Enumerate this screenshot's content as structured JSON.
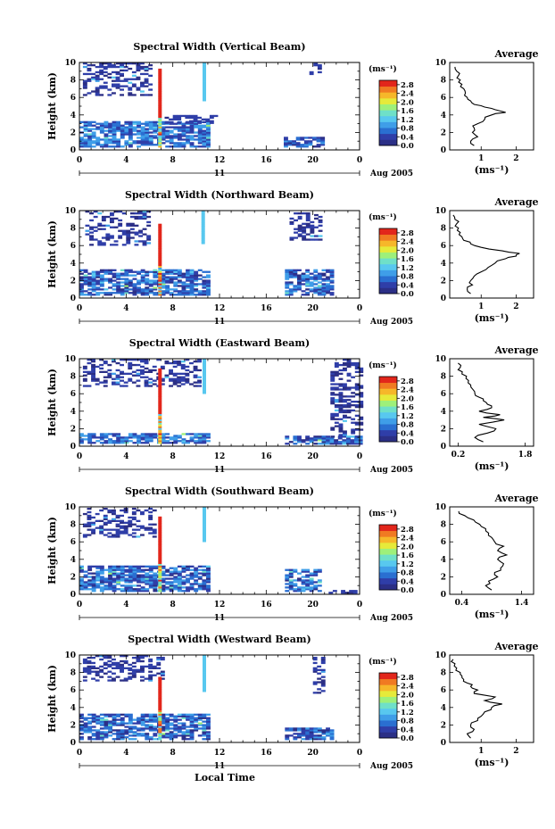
{
  "figure": {
    "x_axis_title": "Local Time",
    "date_label": "Aug 2005",
    "day_label": "11",
    "panel_y_label": "Height (km)",
    "colorbar_unit": "(ms⁻¹)",
    "profile_title": "Average",
    "profile_xlabel": "(ms⁻¹)"
  },
  "colors": {
    "colormap": [
      "#2b2f86",
      "#2f3ea8",
      "#2a6fd1",
      "#3f9ee8",
      "#58c8ef",
      "#6fe0c8",
      "#9ef07a",
      "#e6ea3a",
      "#f6b72a",
      "#f07a22",
      "#e2261b"
    ]
  },
  "chart_data": [
    {
      "type": "heatmap",
      "title": "Spectral Width (Vertical Beam)",
      "xlabel": "",
      "ylabel": "Height (km)",
      "xlim": [
        0,
        24
      ],
      "ylim": [
        0,
        10
      ],
      "xticks": [
        "0",
        "4",
        "8",
        "12",
        "16",
        "20",
        "0"
      ],
      "yticks": [
        "0",
        "2",
        "4",
        "6",
        "8",
        "10"
      ],
      "colorbar": {
        "label": "(ms⁻¹)",
        "ticks": [
          "0.0",
          "0.4",
          "0.8",
          "1.2",
          "1.6",
          "2.0",
          "2.4",
          "2.8"
        ],
        "range": [
          0,
          3.0
        ]
      },
      "regions": [
        {
          "t0": 0.0,
          "t1": 11.1,
          "h0": 0.3,
          "h1": 3.2,
          "v": 0.6
        },
        {
          "t0": 0.3,
          "t1": 6.0,
          "h0": 6.2,
          "h1": 9.8,
          "v": 0.2
        },
        {
          "t0": 7.3,
          "t1": 11.6,
          "h0": 3.0,
          "h1": 4.0,
          "v": 0.3
        },
        {
          "t0": 17.5,
          "t1": 21.0,
          "h0": 0.3,
          "h1": 1.3,
          "v": 0.5
        },
        {
          "t0": 19.7,
          "t1": 20.6,
          "h0": 8.6,
          "h1": 9.9,
          "v": 0.2
        }
      ],
      "streaks": [
        {
          "t": 6.9,
          "h0": 0.3,
          "h1": 9.3,
          "v": 3.0
        },
        {
          "t": 10.7,
          "h0": 5.6,
          "h1": 9.9,
          "v": 1.2
        }
      ],
      "profile": {
        "title": "Average",
        "xlabel": "(ms⁻¹)",
        "xticks": [
          "1",
          "2"
        ],
        "xlim": [
          0.1,
          2.5
        ],
        "ylim": [
          0,
          10
        ],
        "yticks": [
          "0",
          "2",
          "4",
          "6",
          "8",
          "10"
        ],
        "heights": [
          0.5,
          1.0,
          1.5,
          2.0,
          2.5,
          3.0,
          3.5,
          4.0,
          4.3,
          4.6,
          4.9,
          5.2,
          5.6,
          6.0,
          6.5,
          7.0,
          7.5,
          8.0,
          8.5,
          9.0,
          9.5
        ],
        "values": [
          0.8,
          0.7,
          0.9,
          0.75,
          0.8,
          0.9,
          1.1,
          1.3,
          1.7,
          1.4,
          1.1,
          0.8,
          0.7,
          0.6,
          0.55,
          0.5,
          0.45,
          0.4,
          0.35,
          0.3,
          0.25
        ]
      }
    },
    {
      "type": "heatmap",
      "title": "Spectral Width (Northward Beam)",
      "xlabel": "",
      "ylabel": "Height (km)",
      "xlim": [
        0,
        24
      ],
      "ylim": [
        0,
        10
      ],
      "xticks": [
        "0",
        "4",
        "8",
        "12",
        "16",
        "20",
        "0"
      ],
      "yticks": [
        "0",
        "2",
        "4",
        "6",
        "8",
        "10"
      ],
      "colorbar": {
        "label": "(ms⁻¹)",
        "ticks": [
          "0.0",
          "0.4",
          "0.8",
          "1.2",
          "1.6",
          "2.0",
          "2.4",
          "2.8"
        ],
        "range": [
          0,
          3.0
        ]
      },
      "regions": [
        {
          "t0": 0.0,
          "t1": 11.0,
          "h0": 0.3,
          "h1": 3.2,
          "v": 0.5
        },
        {
          "t0": 0.5,
          "t1": 6.0,
          "h0": 6.0,
          "h1": 9.8,
          "v": 0.2
        },
        {
          "t0": 17.6,
          "t1": 21.5,
          "h0": 0.3,
          "h1": 3.2,
          "v": 0.5
        },
        {
          "t0": 18.0,
          "t1": 20.6,
          "h0": 6.6,
          "h1": 9.6,
          "v": 0.2
        }
      ],
      "streaks": [
        {
          "t": 6.9,
          "h0": 0.3,
          "h1": 8.4,
          "v": 3.0
        },
        {
          "t": 10.6,
          "h0": 6.2,
          "h1": 9.8,
          "v": 1.2
        }
      ],
      "profile": {
        "title": "Average",
        "xlabel": "(ms⁻¹)",
        "xticks": [
          "1",
          "2"
        ],
        "xlim": [
          0.1,
          2.5
        ],
        "ylim": [
          0,
          10
        ],
        "yticks": [
          "0",
          "2",
          "4",
          "6",
          "8",
          "10"
        ],
        "heights": [
          0.5,
          1.0,
          1.5,
          2.0,
          2.5,
          3.0,
          3.5,
          4.0,
          4.5,
          4.8,
          5.1,
          5.4,
          5.8,
          6.2,
          6.6,
          7.0,
          7.5,
          8.0,
          8.5,
          9.0,
          9.5
        ],
        "values": [
          0.7,
          0.6,
          0.75,
          0.7,
          0.8,
          1.0,
          1.2,
          1.4,
          1.7,
          2.0,
          2.1,
          1.6,
          1.0,
          0.7,
          0.5,
          0.45,
          0.4,
          0.35,
          0.3,
          0.25,
          0.2
        ]
      }
    },
    {
      "type": "heatmap",
      "title": "Spectral Width (Eastward Beam)",
      "xlabel": "",
      "ylabel": "Height (km)",
      "xlim": [
        0,
        24
      ],
      "ylim": [
        0,
        10
      ],
      "xticks": [
        "0",
        "4",
        "8",
        "12",
        "16",
        "20",
        "0"
      ],
      "yticks": [
        "0",
        "2",
        "4",
        "6",
        "8",
        "10"
      ],
      "colorbar": {
        "label": "(ms⁻¹)",
        "ticks": [
          "0.0",
          "0.4",
          "0.8",
          "1.2",
          "1.6",
          "2.0",
          "2.4",
          "2.8"
        ],
        "range": [
          0,
          3.0
        ]
      },
      "regions": [
        {
          "t0": 0.0,
          "t1": 11.1,
          "h0": 0.3,
          "h1": 1.3,
          "v": 0.6
        },
        {
          "t0": 0.3,
          "t1": 10.3,
          "h0": 6.8,
          "h1": 9.8,
          "v": 0.2
        },
        {
          "t0": 17.6,
          "t1": 24.0,
          "h0": 0.2,
          "h1": 1.2,
          "v": 0.5
        },
        {
          "t0": 21.5,
          "t1": 24.0,
          "h0": 1.0,
          "h1": 9.8,
          "v": 0.15
        }
      ],
      "streaks": [
        {
          "t": 6.9,
          "h0": 0.3,
          "h1": 8.8,
          "v": 3.0
        },
        {
          "t": 10.7,
          "h0": 6.0,
          "h1": 9.8,
          "v": 1.2
        }
      ],
      "profile": {
        "title": "Average",
        "xlabel": "(ms⁻¹)",
        "xticks": [
          "0.2",
          "1.8"
        ],
        "xlim": [
          0.0,
          2.0
        ],
        "ylim": [
          0,
          10
        ],
        "yticks": [
          "0",
          "2",
          "4",
          "6",
          "8",
          "10"
        ],
        "heights": [
          0.5,
          1.0,
          1.5,
          2.0,
          2.5,
          3.0,
          3.3,
          3.6,
          4.0,
          4.4,
          4.8,
          5.2,
          5.6,
          6.0,
          6.5,
          7.0,
          7.5,
          8.0,
          8.5,
          9.0,
          9.5
        ],
        "values": [
          0.8,
          0.6,
          0.9,
          1.1,
          0.7,
          1.3,
          0.8,
          1.2,
          0.7,
          1.0,
          0.9,
          0.8,
          0.7,
          0.6,
          0.55,
          0.5,
          0.45,
          0.4,
          0.3,
          0.25,
          0.2
        ]
      }
    },
    {
      "type": "heatmap",
      "title": "Spectral Width (Southward Beam)",
      "xlabel": "",
      "ylabel": "Height (km)",
      "xlim": [
        0,
        24
      ],
      "ylim": [
        0,
        10
      ],
      "xticks": [
        "0",
        "4",
        "8",
        "12",
        "16",
        "20",
        "0"
      ],
      "yticks": [
        "0",
        "2",
        "4",
        "6",
        "8",
        "10"
      ],
      "colorbar": {
        "label": "(ms⁻¹)",
        "ticks": [
          "0.0",
          "0.4",
          "0.8",
          "1.2",
          "1.6",
          "2.0",
          "2.4",
          "2.8"
        ],
        "range": [
          0,
          3.0
        ]
      },
      "regions": [
        {
          "t0": 0.0,
          "t1": 11.0,
          "h0": 0.3,
          "h1": 3.2,
          "v": 0.5
        },
        {
          "t0": 0.3,
          "t1": 6.5,
          "h0": 6.5,
          "h1": 9.8,
          "v": 0.2
        },
        {
          "t0": 17.6,
          "t1": 20.6,
          "h0": 0.3,
          "h1": 2.8,
          "v": 0.5
        },
        {
          "t0": 21.0,
          "t1": 24.0,
          "h0": 0.1,
          "h1": 0.5,
          "v": 0.2
        }
      ],
      "streaks": [
        {
          "t": 6.9,
          "h0": 0.3,
          "h1": 8.8,
          "v": 3.0
        },
        {
          "t": 10.7,
          "h0": 6.0,
          "h1": 9.8,
          "v": 1.2
        }
      ],
      "profile": {
        "title": "Average",
        "xlabel": "(ms⁻¹)",
        "xticks": [
          "0.4",
          "1.4"
        ],
        "xlim": [
          0.2,
          1.6
        ],
        "ylim": [
          0,
          10
        ],
        "yticks": [
          "0",
          "2",
          "4",
          "6",
          "8",
          "10"
        ],
        "heights": [
          0.5,
          1.0,
          1.5,
          2.0,
          2.5,
          3.0,
          3.5,
          4.0,
          4.5,
          5.0,
          5.5,
          6.0,
          6.5,
          7.0,
          7.5,
          8.0,
          8.5,
          9.0,
          9.5
        ],
        "values": [
          0.9,
          0.8,
          0.85,
          1.0,
          0.95,
          1.05,
          1.1,
          1.0,
          1.15,
          1.0,
          1.1,
          0.95,
          0.9,
          0.85,
          0.8,
          0.7,
          0.6,
          0.45,
          0.35
        ]
      }
    },
    {
      "type": "heatmap",
      "title": "Spectral Width (Westward Beam)",
      "xlabel": "Local Time",
      "ylabel": "Height (km)",
      "xlim": [
        0,
        24
      ],
      "ylim": [
        0,
        10
      ],
      "xticks": [
        "0",
        "4",
        "8",
        "12",
        "16",
        "20",
        "0"
      ],
      "yticks": [
        "0",
        "2",
        "4",
        "6",
        "8",
        "10"
      ],
      "colorbar": {
        "label": "(ms⁻¹)",
        "ticks": [
          "0.0",
          "0.4",
          "0.8",
          "1.2",
          "1.6",
          "2.0",
          "2.4",
          "2.8"
        ],
        "range": [
          0,
          3.0
        ]
      },
      "regions": [
        {
          "t0": 0.0,
          "t1": 11.1,
          "h0": 0.3,
          "h1": 3.2,
          "v": 0.5
        },
        {
          "t0": 0.3,
          "t1": 7.0,
          "h0": 7.0,
          "h1": 9.8,
          "v": 0.2
        },
        {
          "t0": 17.6,
          "t1": 21.6,
          "h0": 0.3,
          "h1": 1.5,
          "v": 0.5
        },
        {
          "t0": 20.0,
          "t1": 20.8,
          "h0": 5.6,
          "h1": 9.8,
          "v": 0.2
        }
      ],
      "streaks": [
        {
          "t": 6.9,
          "h0": 0.3,
          "h1": 7.4,
          "v": 3.0
        },
        {
          "t": 10.7,
          "h0": 5.8,
          "h1": 9.8,
          "v": 1.2
        }
      ],
      "profile": {
        "title": "Average",
        "xlabel": "(ms⁻¹)",
        "xticks": [
          "1",
          "2"
        ],
        "xlim": [
          0.1,
          2.5
        ],
        "ylim": [
          0,
          10
        ],
        "yticks": [
          "0",
          "2",
          "4",
          "6",
          "8",
          "10"
        ],
        "heights": [
          0.5,
          1.0,
          1.5,
          2.0,
          2.5,
          3.0,
          3.5,
          4.0,
          4.4,
          4.8,
          5.2,
          5.6,
          6.0,
          6.4,
          6.8,
          7.2,
          7.6,
          8.0,
          8.5,
          9.0,
          9.5
        ],
        "values": [
          0.7,
          0.6,
          0.8,
          0.7,
          0.9,
          1.0,
          1.1,
          1.3,
          1.6,
          1.1,
          1.4,
          0.8,
          0.9,
          0.7,
          0.6,
          0.5,
          0.45,
          0.4,
          0.3,
          0.25,
          0.2
        ]
      }
    }
  ]
}
